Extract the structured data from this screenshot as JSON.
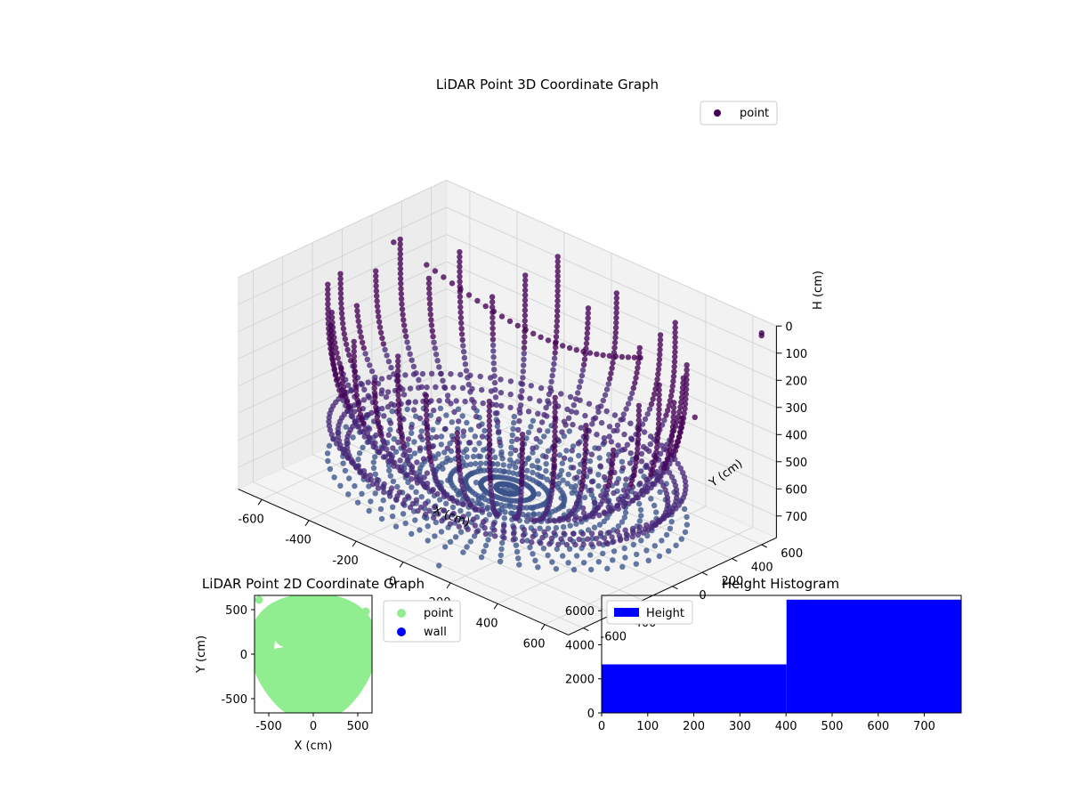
{
  "colors": {
    "point3d_dark": "#440154",
    "point3d_mid": "#3b528b",
    "point3d_light": "#21918c",
    "pane": "#f2f2f2",
    "grid": "#d0d0d0",
    "point2d": "#90ee90",
    "wall2d": "#0000ff",
    "hist": "#0000ff"
  },
  "chart_data": [
    {
      "type": "scatter",
      "projection": "3d",
      "title": "LiDAR Point 3D Coordinate Graph",
      "xlabel": "X (cm)",
      "ylabel": "Y (cm)",
      "zlabel": "H (cm)",
      "xlim": [
        -700,
        700
      ],
      "ylim": [
        -700,
        700
      ],
      "zlim": [
        780,
        0
      ],
      "xticks": [
        -600,
        -400,
        -200,
        0,
        200,
        400,
        600
      ],
      "yticks": [
        -600,
        -400,
        -200,
        0,
        200,
        400,
        600
      ],
      "zticks": [
        0,
        100,
        200,
        300,
        400,
        500,
        600,
        700
      ],
      "legend": {
        "placement": "top-right",
        "entries": [
          "point"
        ]
      },
      "grid": true,
      "description_of_series": {
        "name": "point",
        "bowl_radius_cm": 650,
        "bowl_depth_cm": 700,
        "num_wall_columns": 34,
        "extra_points": [
          {
            "x": -690,
            "y": 330,
            "h": 130
          },
          {
            "x": 700,
            "y": 600,
            "h": 10
          },
          {
            "x": 650,
            "y": 680,
            "h": 40
          },
          {
            "x": 720,
            "y": 120,
            "h": 180
          },
          {
            "x": 690,
            "y": -420,
            "h": 520
          },
          {
            "x": -40,
            "y": -480,
            "h": 690
          },
          {
            "x": 120,
            "y": -650,
            "h": 760
          }
        ]
      }
    },
    {
      "type": "scatter",
      "title": "LiDAR Point 2D Coordinate Graph",
      "xlabel": "X (cm)",
      "ylabel": "Y (cm)",
      "xlim": [
        -660,
        660
      ],
      "ylim": [
        -660,
        660
      ],
      "xticks": [
        -500,
        0,
        500
      ],
      "yticks": [
        -500,
        0,
        500
      ],
      "series": [
        {
          "name": "point",
          "color": "#90ee90"
        },
        {
          "name": "wall",
          "color": "#0000ff"
        }
      ],
      "legend": {
        "placement": "outside-right"
      }
    },
    {
      "type": "bar",
      "title": "Height Histogram",
      "xlim": [
        0,
        780
      ],
      "ylim": [
        0,
        6900
      ],
      "xticks": [
        0,
        100,
        200,
        300,
        400,
        500,
        600,
        700
      ],
      "yticks": [
        0,
        2000,
        4000,
        6000
      ],
      "bins": [
        {
          "x0": 0,
          "x1": 401,
          "count": 2850
        },
        {
          "x0": 401,
          "x1": 780,
          "count": 6650
        }
      ],
      "series": [
        {
          "name": "Height",
          "color": "#0000ff"
        }
      ],
      "legend": {
        "placement": "top-left"
      }
    }
  ]
}
